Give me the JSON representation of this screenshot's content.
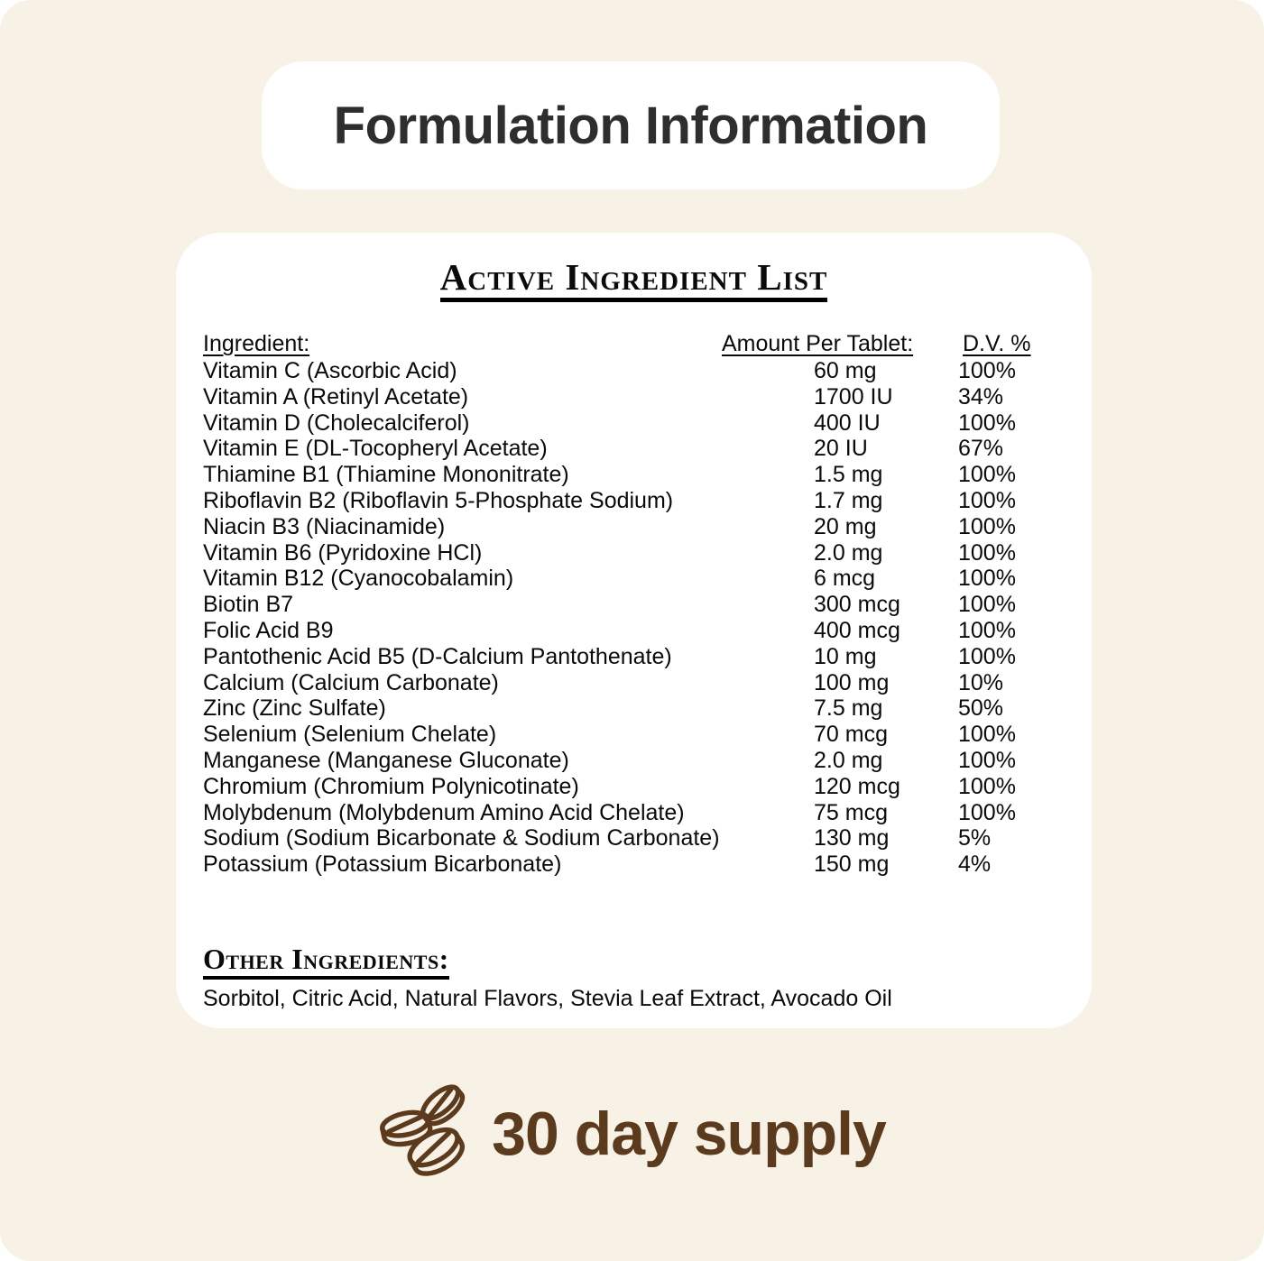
{
  "page": {
    "background_color": "#f8f1e6",
    "card_color": "#ffffff",
    "text_color": "#0a0a0a",
    "title_color": "#2e2e2e",
    "accent_brown": "#5b3a1e"
  },
  "header": {
    "title": "Formulation Information"
  },
  "panel": {
    "heading": "Active Ingredient List",
    "columns": {
      "ingredient": "Ingredient:",
      "amount": "Amount Per Tablet:",
      "dv": "D.V. %"
    },
    "rows": [
      {
        "ingredient": "Vitamin C (Ascorbic Acid)",
        "amount": "60 mg",
        "dv": "100%"
      },
      {
        "ingredient": "Vitamin A (Retinyl Acetate)",
        "amount": "1700 IU",
        "dv": "34%"
      },
      {
        "ingredient": "Vitamin D (Cholecalciferol)",
        "amount": "400 IU",
        "dv": "100%"
      },
      {
        "ingredient": "Vitamin E (DL-Tocopheryl Acetate)",
        "amount": "20 IU",
        "dv": "67%"
      },
      {
        "ingredient": "Thiamine B1 (Thiamine Mononitrate)",
        "amount": "1.5 mg",
        "dv": "100%"
      },
      {
        "ingredient": "Riboflavin B2 (Riboflavin 5-Phosphate Sodium)",
        "amount": "1.7 mg",
        "dv": "100%"
      },
      {
        "ingredient": "Niacin B3 (Niacinamide)",
        "amount": "20 mg",
        "dv": "100%"
      },
      {
        "ingredient": "Vitamin B6 (Pyridoxine HCl)",
        "amount": "2.0 mg",
        "dv": "100%"
      },
      {
        "ingredient": "Vitamin B12 (Cyanocobalamin)",
        "amount": "6 mcg",
        "dv": "100%"
      },
      {
        "ingredient": "Biotin B7",
        "amount": "300 mcg",
        "dv": "100%"
      },
      {
        "ingredient": "Folic Acid B9",
        "amount": "400 mcg",
        "dv": "100%"
      },
      {
        "ingredient": "Pantothenic Acid B5 (D-Calcium Pantothenate)",
        "amount": "10 mg",
        "dv": "100%"
      },
      {
        "ingredient": "Calcium (Calcium Carbonate)",
        "amount": "100 mg",
        "dv": "10%"
      },
      {
        "ingredient": "Zinc (Zinc Sulfate)",
        "amount": "7.5 mg",
        "dv": "50%"
      },
      {
        "ingredient": "Selenium (Selenium Chelate)",
        "amount": "70 mcg",
        "dv": "100%"
      },
      {
        "ingredient": "Manganese (Manganese Gluconate)",
        "amount": "2.0 mg",
        "dv": "100%"
      },
      {
        "ingredient": "Chromium (Chromium Polynicotinate)",
        "amount": "120 mcg",
        "dv": "100%"
      },
      {
        "ingredient": "Molybdenum (Molybdenum Amino Acid Chelate)",
        "amount": "75 mcg",
        "dv": "100%"
      },
      {
        "ingredient": "Sodium (Sodium Bicarbonate & Sodium Carbonate)",
        "amount": "130 mg",
        "dv": "5%"
      },
      {
        "ingredient": "Potassium (Potassium Bicarbonate)",
        "amount": "150 mg",
        "dv": "4%"
      }
    ],
    "other": {
      "heading": "Other Ingredients:",
      "text": "Sorbitol, Citric Acid, Natural Flavors, Stevia Leaf Extract, Avocado Oil"
    }
  },
  "footer": {
    "supply": "30 day supply",
    "icon": "tablets-icon"
  }
}
